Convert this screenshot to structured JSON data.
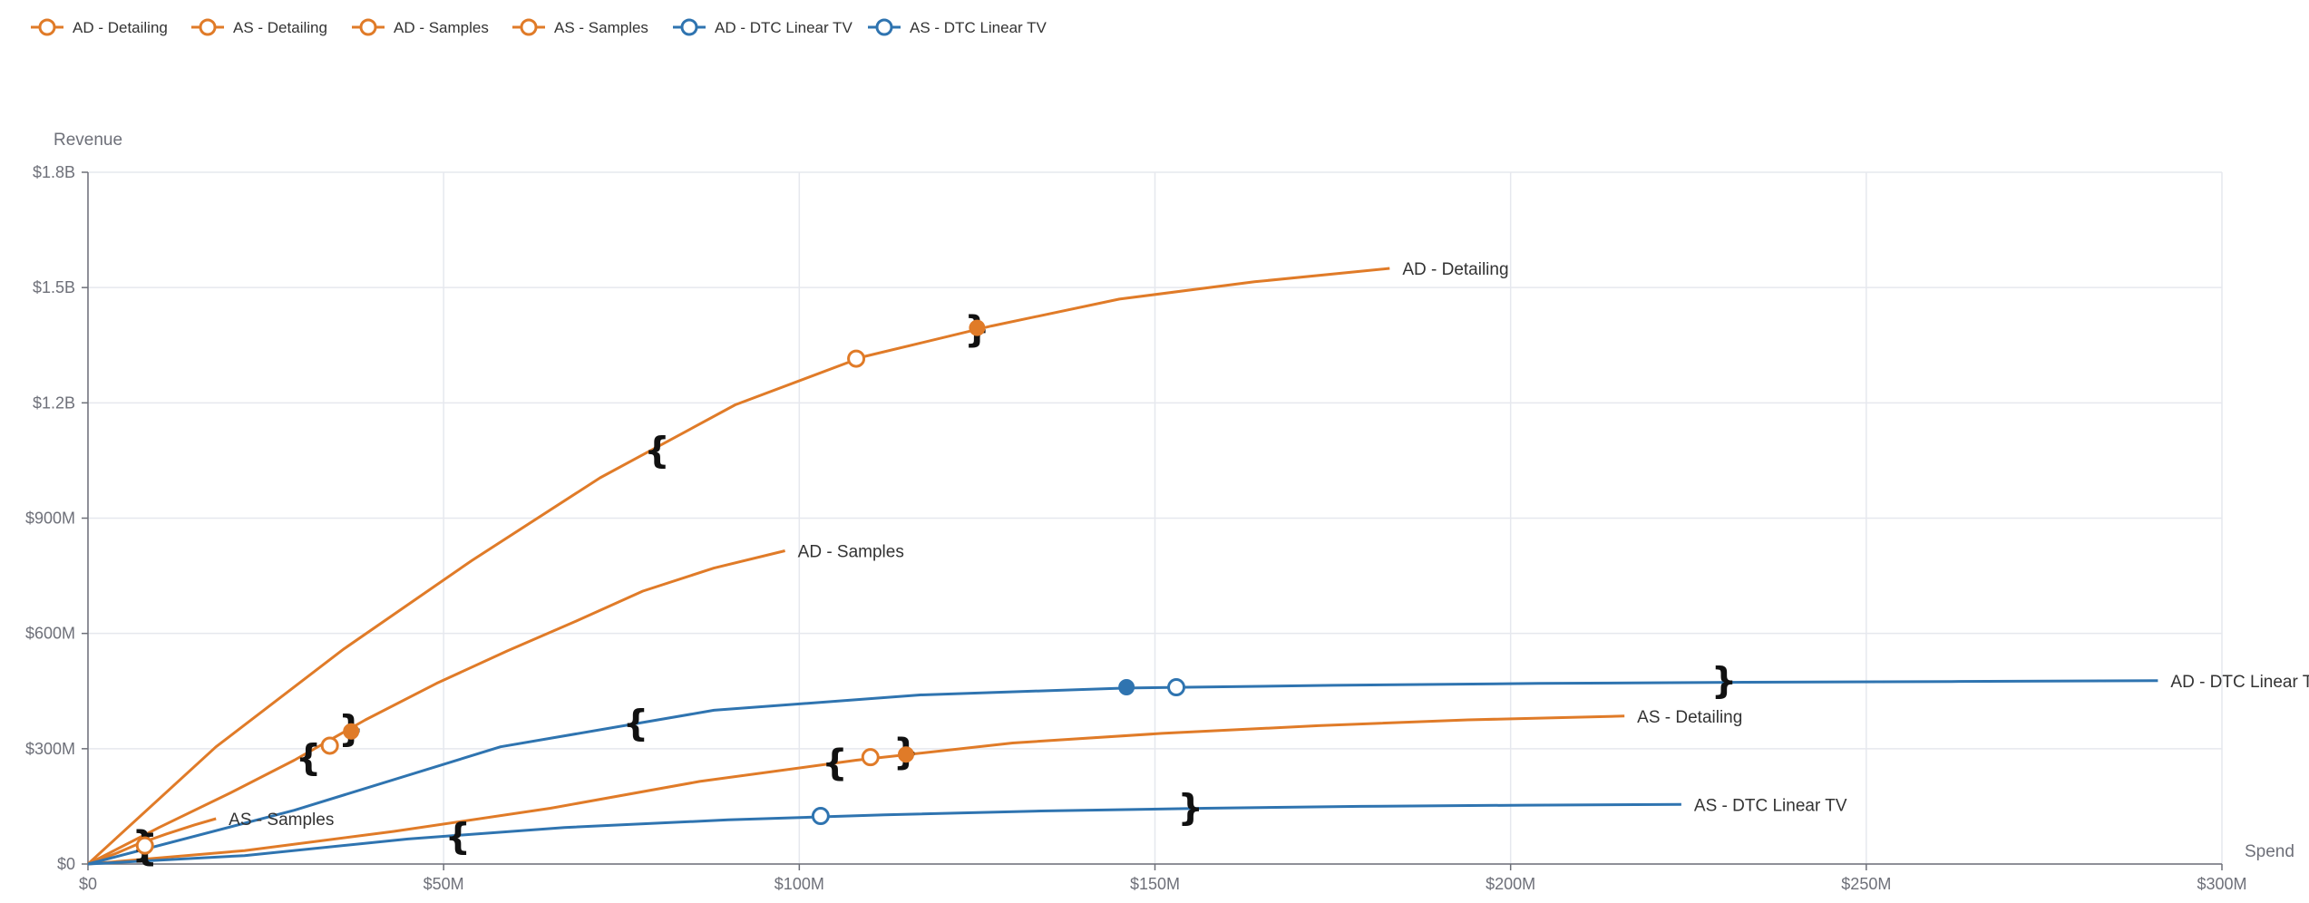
{
  "chart_data": {
    "type": "line",
    "title": "",
    "xlabel": "Spend",
    "ylabel": "Revenue",
    "xlim": [
      0,
      300
    ],
    "ylim": [
      0,
      1800
    ],
    "x_unit": "$M",
    "y_unit": "$M",
    "grid": true,
    "legend_position": "top-left",
    "x_ticks": [
      {
        "value": 0,
        "label": "$0"
      },
      {
        "value": 50,
        "label": "$50M"
      },
      {
        "value": 100,
        "label": "$100M"
      },
      {
        "value": 150,
        "label": "$150M"
      },
      {
        "value": 200,
        "label": "$200M"
      },
      {
        "value": 250,
        "label": "$250M"
      },
      {
        "value": 300,
        "label": "$300M"
      }
    ],
    "y_ticks": [
      {
        "value": 0,
        "label": "$0"
      },
      {
        "value": 300,
        "label": "$300M"
      },
      {
        "value": 600,
        "label": "$600M"
      },
      {
        "value": 900,
        "label": "$900M"
      },
      {
        "value": 1200,
        "label": "$1.2B"
      },
      {
        "value": 1500,
        "label": "$1.5B"
      },
      {
        "value": 1800,
        "label": "$1.8B"
      }
    ],
    "series": [
      {
        "name": "AD - Detailing",
        "color": "#e07b28",
        "end_label": "AD - Detailing",
        "points": [
          [
            0,
            0
          ],
          [
            18,
            305
          ],
          [
            36,
            560
          ],
          [
            54,
            790
          ],
          [
            72,
            1005
          ],
          [
            91,
            1195
          ],
          [
            109,
            1320
          ],
          [
            127,
            1400
          ],
          [
            145,
            1470
          ],
          [
            164,
            1515
          ],
          [
            183,
            1550
          ]
        ],
        "open_marker": [
          108,
          1315
        ],
        "filled_marker": [
          125,
          1395
        ],
        "bracket_open": [
          80,
          1075
        ],
        "bracket_close": [
          125,
          1390
        ]
      },
      {
        "name": "AS - Detailing",
        "color": "#e07b28",
        "end_label": "AS - Detailing",
        "points": [
          [
            0,
            0
          ],
          [
            22,
            35
          ],
          [
            43,
            85
          ],
          [
            65,
            145
          ],
          [
            86,
            215
          ],
          [
            108,
            270
          ],
          [
            130,
            315
          ],
          [
            151,
            340
          ],
          [
            173,
            360
          ],
          [
            194,
            375
          ],
          [
            216,
            385
          ]
        ],
        "open_marker": [
          110,
          278
        ],
        "filled_marker": [
          115,
          285
        ],
        "bracket_open": [
          105,
          262
        ],
        "bracket_close": [
          115,
          290
        ]
      },
      {
        "name": "AD - Samples",
        "color": "#e07b28",
        "end_label": "AD - Samples",
        "points": [
          [
            0,
            0
          ],
          [
            10,
            95
          ],
          [
            20,
            185
          ],
          [
            29,
            270
          ],
          [
            39,
            375
          ],
          [
            49,
            470
          ],
          [
            59,
            555
          ],
          [
            69,
            635
          ],
          [
            78,
            710
          ],
          [
            88,
            770
          ],
          [
            98,
            815
          ]
        ],
        "open_marker": [
          34,
          308
        ],
        "filled_marker": [
          37,
          345
        ],
        "bracket_open": [
          31,
          275
        ],
        "bracket_close": [
          37,
          350
        ]
      },
      {
        "name": "AS - Samples",
        "color": "#e07b28",
        "end_label": "AS - Samples",
        "points": [
          [
            0,
            0
          ],
          [
            4,
            28
          ],
          [
            7,
            52
          ],
          [
            11,
            78
          ],
          [
            15,
            102
          ],
          [
            18,
            118
          ]
        ],
        "open_marker": [
          8,
          48
        ],
        "filled_marker": [
          8,
          50
        ],
        "bracket_open": [
          8,
          40
        ],
        "bracket_close": [
          8,
          50
        ]
      },
      {
        "name": "AD - DTC Linear TV",
        "color": "#2f74b0",
        "end_label": "AD - DTC Linear TV",
        "points": [
          [
            0,
            0
          ],
          [
            29,
            140
          ],
          [
            58,
            305
          ],
          [
            88,
            400
          ],
          [
            117,
            440
          ],
          [
            146,
            458
          ],
          [
            175,
            465
          ],
          [
            204,
            470
          ],
          [
            233,
            473
          ],
          [
            262,
            475
          ],
          [
            291,
            477
          ]
        ],
        "open_marker": [
          153,
          460
        ],
        "filled_marker": [
          146,
          460
        ],
        "bracket_open": [
          77,
          365
        ],
        "bracket_close": [
          230,
          475
        ]
      },
      {
        "name": "AS - DTC Linear TV",
        "color": "#2f74b0",
        "end_label": "AS - DTC Linear TV",
        "points": [
          [
            0,
            0
          ],
          [
            22,
            22
          ],
          [
            45,
            65
          ],
          [
            67,
            95
          ],
          [
            90,
            115
          ],
          [
            112,
            128
          ],
          [
            134,
            138
          ],
          [
            157,
            145
          ],
          [
            179,
            150
          ],
          [
            202,
            153
          ],
          [
            224,
            155
          ]
        ],
        "open_marker": [
          103,
          125
        ],
        "filled_marker": null,
        "bracket_open": [
          52,
          70
        ],
        "bracket_close": [
          155,
          145
        ]
      }
    ]
  }
}
